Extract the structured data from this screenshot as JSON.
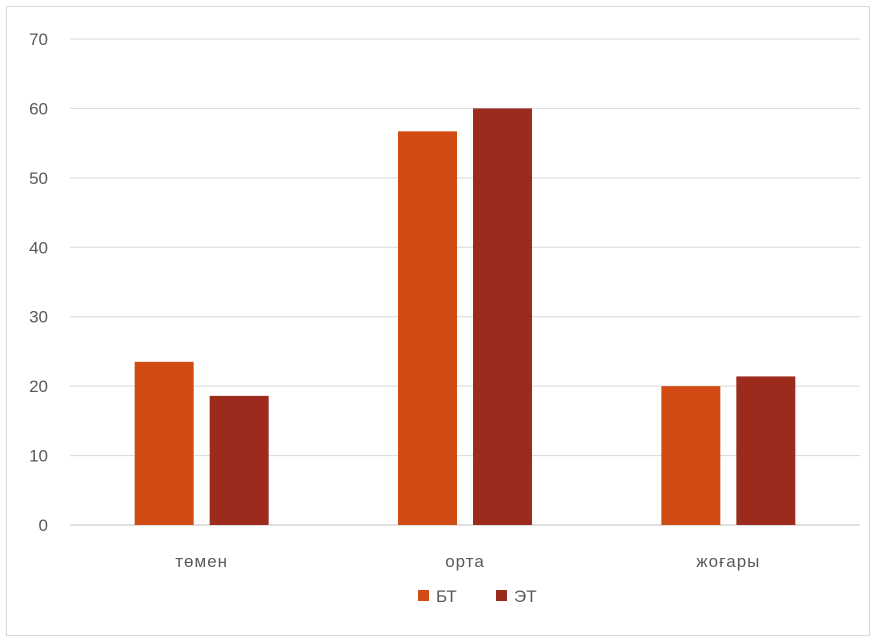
{
  "chart_data": {
    "type": "bar",
    "categories": [
      "төмен",
      "орта",
      "жоғары"
    ],
    "series": [
      {
        "name": "БТ",
        "values": [
          23.5,
          56.7,
          20.0
        ],
        "color": "#D24A14"
      },
      {
        "name": "ЭТ",
        "values": [
          18.6,
          60.0,
          21.4
        ],
        "color": "#9C2B1E"
      }
    ],
    "yticks": [
      0,
      10,
      20,
      30,
      40,
      50,
      60,
      70
    ],
    "ylim": [
      0,
      70
    ],
    "grid": true,
    "legend_position": "bottom",
    "title": "",
    "xlabel": "",
    "ylabel": ""
  }
}
